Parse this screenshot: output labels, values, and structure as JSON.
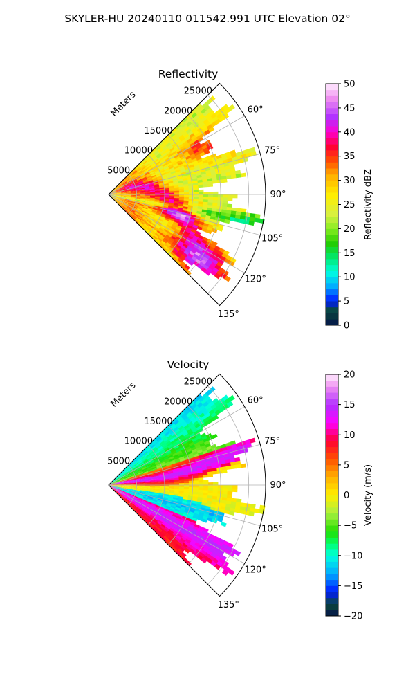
{
  "figure": {
    "suptitle": "SKYLER-HU  20240110  011542.991 UTC Elevation 02°"
  },
  "chart_data": [
    {
      "type": "heatmap",
      "projection": "polar-sector",
      "title": "Reflectivity",
      "radial_label": "Meters",
      "radial_ticks": [
        5000,
        10000,
        15000,
        20000,
        25000
      ],
      "radial_tick_labels": [
        "5000",
        "10000",
        "15000",
        "20000",
        "25000"
      ],
      "azimuth_range": [
        45,
        135
      ],
      "azimuth_ticks": [
        60,
        75,
        90,
        105,
        120,
        135
      ],
      "azimuth_tick_labels": [
        "60°",
        "75°",
        "90°",
        "105°",
        "120°",
        "135°"
      ],
      "grid": true,
      "colorbar": {
        "label": "Reflectivity dBZ",
        "range": [
          0,
          50
        ],
        "ticks": [
          0,
          5,
          10,
          15,
          20,
          25,
          30,
          35,
          40,
          45,
          50
        ],
        "tick_labels": [
          "0",
          "5",
          "10",
          "15",
          "20",
          "25",
          "30",
          "35",
          "40",
          "45",
          "50"
        ],
        "stops": [
          {
            "v": 0,
            "c": "#04124a"
          },
          {
            "v": 3,
            "c": "#0a4a3a"
          },
          {
            "v": 5,
            "c": "#0018ff"
          },
          {
            "v": 8,
            "c": "#00aaff"
          },
          {
            "v": 11,
            "c": "#00ffe0"
          },
          {
            "v": 14,
            "c": "#00e870"
          },
          {
            "v": 17,
            "c": "#22cc00"
          },
          {
            "v": 20,
            "c": "#88ee22"
          },
          {
            "v": 23,
            "c": "#d8f040"
          },
          {
            "v": 27,
            "c": "#ffee00"
          },
          {
            "v": 31,
            "c": "#ffb000"
          },
          {
            "v": 34,
            "c": "#ff5000"
          },
          {
            "v": 37,
            "c": "#ff0033"
          },
          {
            "v": 40,
            "c": "#ff00d0"
          },
          {
            "v": 43,
            "c": "#b030ff"
          },
          {
            "v": 47,
            "c": "#f090f0"
          },
          {
            "v": 50,
            "c": "#ffeeff"
          }
        ]
      }
    },
    {
      "type": "heatmap",
      "projection": "polar-sector",
      "title": "Velocity",
      "radial_label": "Meters",
      "radial_ticks": [
        5000,
        10000,
        15000,
        20000,
        25000
      ],
      "radial_tick_labels": [
        "5000",
        "10000",
        "15000",
        "20000",
        "25000"
      ],
      "azimuth_range": [
        45,
        135
      ],
      "azimuth_ticks": [
        60,
        75,
        90,
        105,
        120,
        135
      ],
      "azimuth_tick_labels": [
        "60°",
        "75°",
        "90°",
        "105°",
        "120°",
        "135°"
      ],
      "grid": true,
      "colorbar": {
        "label": "Velocity (m/s)",
        "range": [
          -20,
          20
        ],
        "ticks": [
          -20,
          -15,
          -10,
          -5,
          0,
          5,
          10,
          15,
          20
        ],
        "tick_labels": [
          "−20",
          "−15",
          "−10",
          "−5",
          "0",
          "5",
          "10",
          "15",
          "20"
        ],
        "stops": [
          {
            "v": -20,
            "c": "#04124a"
          },
          {
            "v": -18,
            "c": "#0a4a3a"
          },
          {
            "v": -16,
            "c": "#0018ff"
          },
          {
            "v": -13,
            "c": "#00aaff"
          },
          {
            "v": -10,
            "c": "#00ffe0"
          },
          {
            "v": -8,
            "c": "#00ff66"
          },
          {
            "v": -6,
            "c": "#22dd00"
          },
          {
            "v": -3,
            "c": "#aaf040"
          },
          {
            "v": 0,
            "c": "#ffee00"
          },
          {
            "v": 3,
            "c": "#ffb000"
          },
          {
            "v": 6,
            "c": "#ff5000"
          },
          {
            "v": 9,
            "c": "#ff0033"
          },
          {
            "v": 12,
            "c": "#ff00ff"
          },
          {
            "v": 15,
            "c": "#b030ff"
          },
          {
            "v": 18,
            "c": "#f090f0"
          },
          {
            "v": 20,
            "c": "#ffeeff"
          }
        ]
      }
    }
  ]
}
